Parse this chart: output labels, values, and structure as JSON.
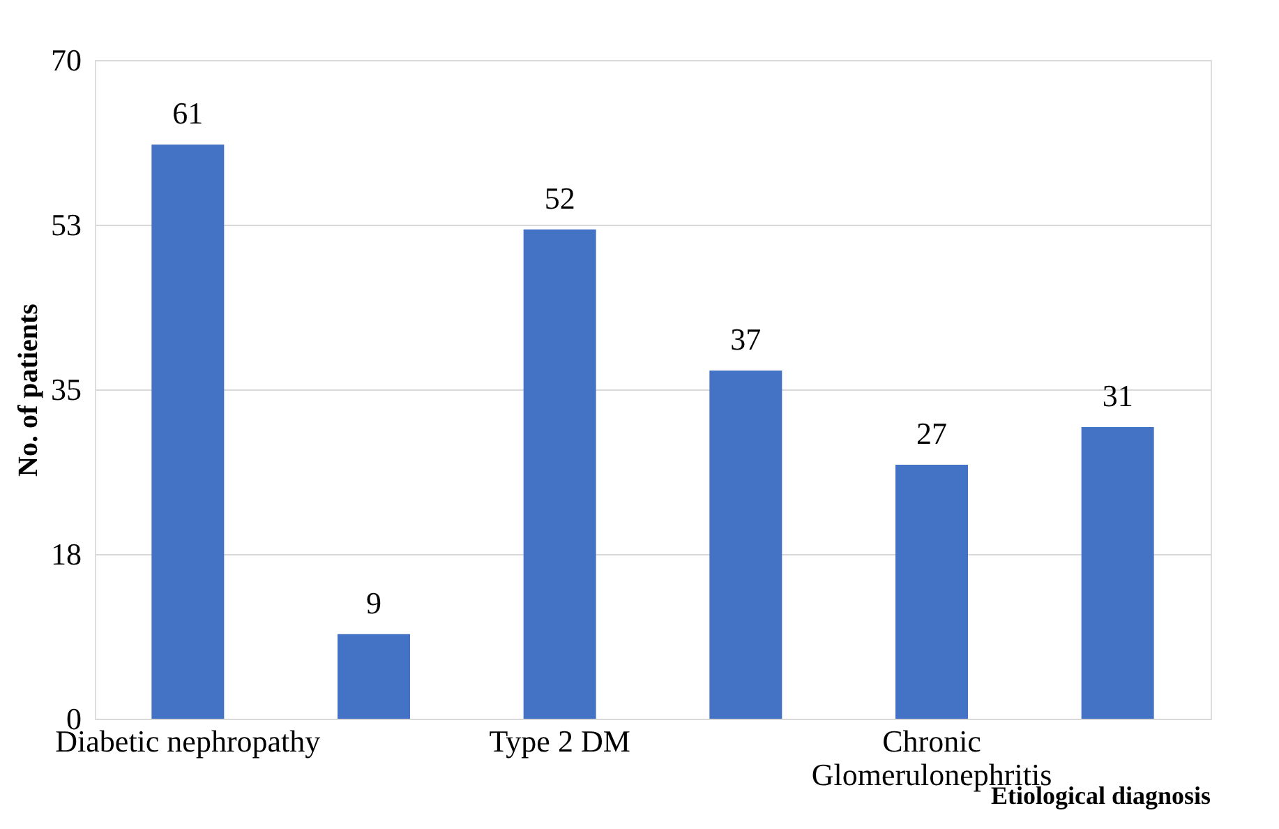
{
  "chart_data": {
    "type": "bar",
    "xlabel": "Etiological diagnosis",
    "ylabel": "No. of patients",
    "categories": [
      "Diabetic nephropathy",
      null,
      "Type 2 DM",
      null,
      "Chronic Glomerulonephritis",
      null
    ],
    "values": [
      61,
      9,
      52,
      37,
      27,
      31
    ],
    "color": "#4472c4",
    "ylim": [
      0,
      70
    ],
    "yticks": [
      0,
      {
        "value": 17.5,
        "label": "18"
      },
      35,
      {
        "value": 52.5,
        "label": "53"
      },
      70
    ],
    "grid": "y",
    "data_labels": true
  }
}
